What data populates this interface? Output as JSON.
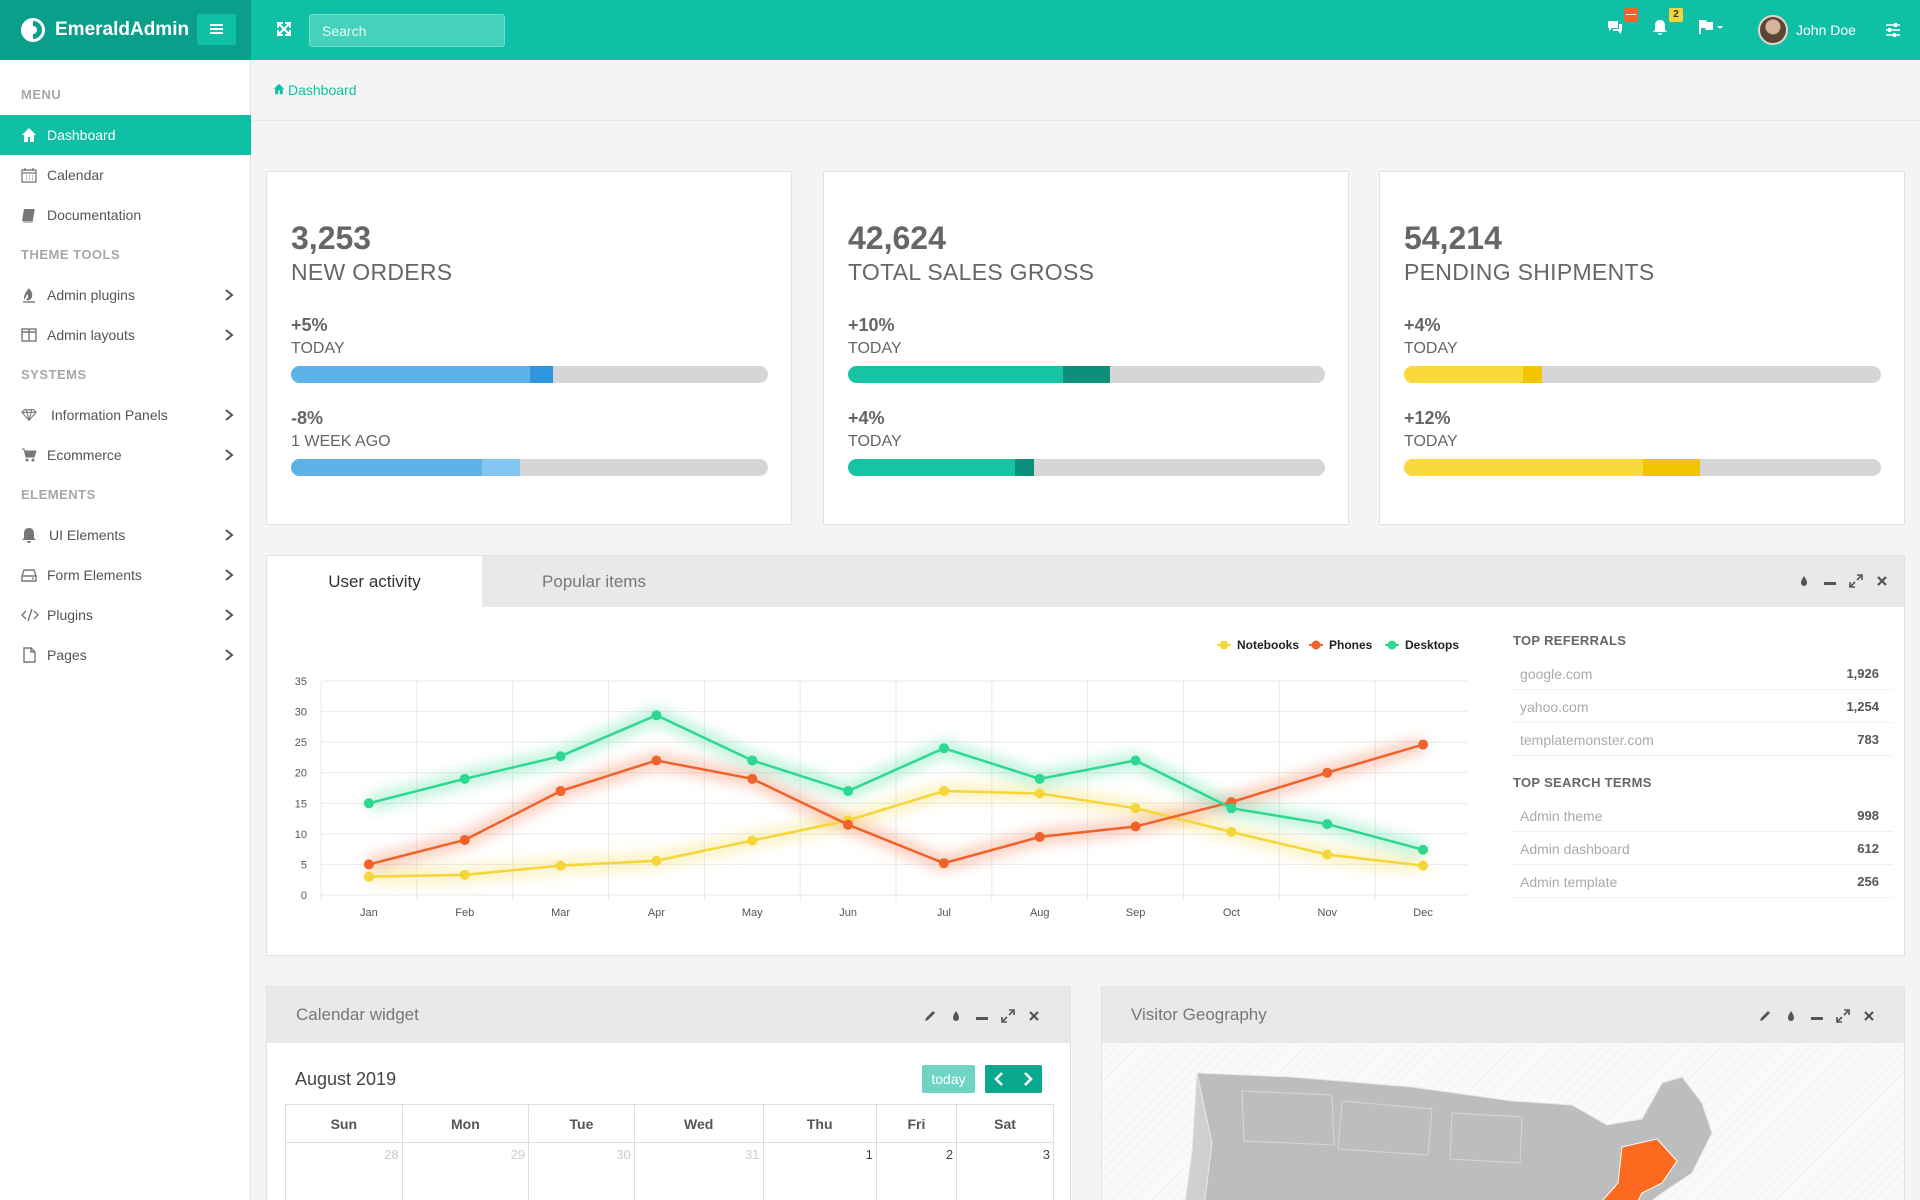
{
  "app": {
    "brand": "EmeraldAdmin"
  },
  "topbar": {
    "search_placeholder": "Search",
    "messages_badge": "—",
    "notifications_badge": "2",
    "user_name": "John Doe"
  },
  "sidebar": {
    "sections": [
      {
        "title": "MENU"
      },
      {
        "title": "THEME TOOLS"
      },
      {
        "title": "SYSTEMS"
      },
      {
        "title": "ELEMENTS"
      }
    ],
    "items": [
      {
        "label": "Dashboard",
        "icon": "home-icon",
        "active": true
      },
      {
        "label": "Calendar",
        "icon": "calendar-icon"
      },
      {
        "label": "Documentation",
        "icon": "book-icon"
      },
      {
        "label": "Admin plugins",
        "icon": "fire-icon"
      },
      {
        "label": "Admin layouts",
        "icon": "columns-icon"
      },
      {
        "label": "Information Panels",
        "icon": "diamond-icon"
      },
      {
        "label": "Ecommerce",
        "icon": "cart-icon"
      },
      {
        "label": "UI Elements",
        "icon": "bell-icon"
      },
      {
        "label": "Form Elements",
        "icon": "hdd-icon"
      },
      {
        "label": "Plugins",
        "icon": "code-icon"
      },
      {
        "label": "Pages",
        "icon": "file-icon"
      }
    ]
  },
  "breadcrumb": {
    "label": "Dashboard"
  },
  "stats": [
    {
      "value": "3,253",
      "label": "NEW ORDERS",
      "color": "#5db2e8",
      "accent": "#3498e0",
      "rows": [
        {
          "pct": "+5%",
          "sub": "TODAY",
          "fill": 0.5,
          "seg": 0.05,
          "seg_color": "#2f95de"
        },
        {
          "pct": "-8%",
          "sub": "1 WEEK AGO",
          "fill": 0.4,
          "seg": 0.08,
          "seg_color": "#85c5f1"
        }
      ]
    },
    {
      "value": "42,624",
      "label": "TOTAL SALES GROSS",
      "color": "#17c3a5",
      "rows": [
        {
          "pct": "+10%",
          "sub": "TODAY",
          "fill": 0.45,
          "seg": 0.1,
          "seg_color": "#0a8f78"
        },
        {
          "pct": "+4%",
          "sub": "TODAY",
          "fill": 0.35,
          "seg": 0.04,
          "seg_color": "#0a8f78"
        }
      ]
    },
    {
      "value": "54,214",
      "label": "PENDING SHIPMENTS",
      "color": "#fada3a",
      "rows": [
        {
          "pct": "+4%",
          "sub": "TODAY",
          "fill": 0.25,
          "seg": 0.04,
          "seg_color": "#f3c400"
        },
        {
          "pct": "+12%",
          "sub": "TODAY",
          "fill": 0.5,
          "seg": 0.12,
          "seg_color": "#f3c400"
        }
      ]
    }
  ],
  "activity": {
    "tabs": [
      "User activity",
      "Popular items"
    ],
    "top_referrals_title": "TOP REFERRALS",
    "referrals": [
      {
        "name": "google.com",
        "value": "1,926"
      },
      {
        "name": "yahoo.com",
        "value": "1,254"
      },
      {
        "name": "templatemonster.com",
        "value": "783"
      }
    ],
    "top_search_title": "TOP SEARCH TERMS",
    "search_terms": [
      {
        "name": "Admin theme",
        "value": "998"
      },
      {
        "name": "Admin dashboard",
        "value": "612"
      },
      {
        "name": "Admin template",
        "value": "256"
      }
    ]
  },
  "chart_data": {
    "type": "line",
    "categories": [
      "Jan",
      "Feb",
      "Mar",
      "Apr",
      "May",
      "Jun",
      "Jul",
      "Aug",
      "Sep",
      "Oct",
      "Nov",
      "Dec"
    ],
    "ylim": [
      0,
      35
    ],
    "yticks": [
      0,
      5,
      10,
      15,
      20,
      25,
      30,
      35
    ],
    "grid": true,
    "legend": "top-right",
    "series": [
      {
        "name": "Notebooks",
        "color": "#f5d638",
        "values": [
          3,
          3.3,
          4.8,
          5.6,
          8.9,
          12.2,
          17,
          16.6,
          14.2,
          10.3,
          6.6,
          4.8
        ]
      },
      {
        "name": "Phones",
        "color": "#f0622b",
        "values": [
          5,
          9,
          17,
          22,
          19,
          11.5,
          5.2,
          9.5,
          11.2,
          15.2,
          20,
          24.6
        ]
      },
      {
        "name": "Desktops",
        "color": "#2ed890",
        "values": [
          15,
          19,
          22.7,
          29.4,
          22,
          17,
          24,
          19,
          22,
          14.2,
          11.6,
          7.4
        ]
      }
    ]
  },
  "calendar": {
    "title": "Calendar widget",
    "month": "August 2019",
    "today_label": "today",
    "weekdays": [
      "Sun",
      "Mon",
      "Tue",
      "Wed",
      "Thu",
      "Fri",
      "Sat"
    ],
    "first_week": [
      {
        "day": "28",
        "other": true
      },
      {
        "day": "29",
        "other": true
      },
      {
        "day": "30",
        "other": true
      },
      {
        "day": "31",
        "other": true
      },
      {
        "day": "1",
        "other": false
      },
      {
        "day": "2",
        "other": false
      },
      {
        "day": "3",
        "other": false
      }
    ]
  },
  "geography": {
    "title": "Visitor Geography"
  }
}
